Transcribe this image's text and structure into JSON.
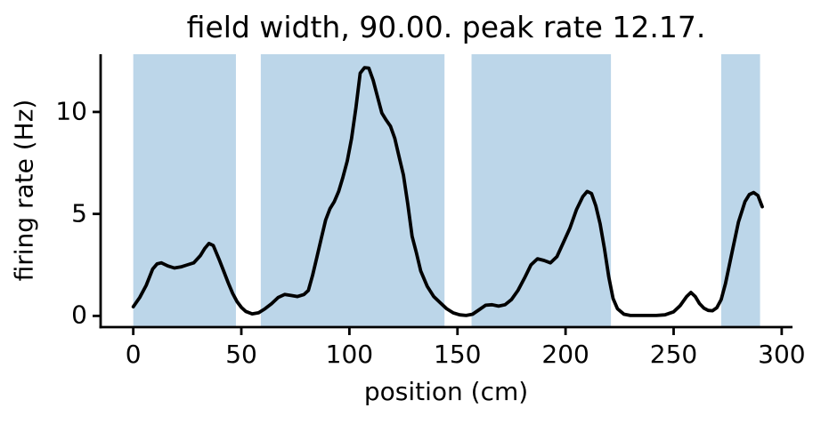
{
  "chart_data": {
    "type": "line",
    "title": "field width, 90.00. peak rate 12.17.",
    "xlabel": "position (cm)",
    "ylabel": "firing rate (Hz)",
    "xlim": [
      -15.1,
      305.0
    ],
    "ylim": [
      -0.55,
      12.83
    ],
    "xticks": [
      0,
      50,
      100,
      150,
      200,
      250,
      300
    ],
    "yticks": [
      0,
      5,
      10
    ],
    "grid": false,
    "legend": "none",
    "line_color": "#000000",
    "axis_color": "#000000",
    "field_fill_color": "#bcd6e9",
    "shaded_fields": [
      [
        0,
        47.5
      ],
      [
        59,
        144
      ],
      [
        156.5,
        221
      ],
      [
        272,
        290
      ]
    ],
    "series": [
      {
        "name": "firing rate (Hz)",
        "x": [
          0,
          3,
          6,
          9,
          11,
          13,
          16,
          19,
          22,
          25,
          28,
          31,
          33,
          35,
          37,
          40,
          42,
          44,
          46,
          48,
          50,
          52,
          55,
          58,
          61,
          64,
          67,
          70,
          73,
          76,
          79,
          81,
          83,
          85,
          87,
          89,
          91,
          93,
          95,
          97,
          99,
          101,
          103,
          105,
          107,
          109,
          111,
          113,
          115,
          117,
          119,
          121,
          123,
          125,
          127,
          129,
          131,
          133,
          136,
          139,
          142,
          145,
          148,
          151,
          154,
          157,
          160,
          163,
          166,
          169,
          172,
          175,
          178,
          181,
          184,
          187,
          190,
          193,
          196,
          199,
          202,
          205,
          208,
          210,
          212,
          214,
          216,
          218,
          220,
          222,
          224,
          227,
          230,
          234,
          238,
          242,
          246,
          250,
          253,
          256,
          258,
          260,
          262,
          264,
          266,
          268,
          270,
          272,
          274,
          277,
          280,
          283,
          285,
          287,
          289,
          291
        ],
        "y": [
          0.45,
          0.9,
          1.5,
          2.3,
          2.55,
          2.6,
          2.45,
          2.35,
          2.4,
          2.5,
          2.6,
          2.95,
          3.3,
          3.55,
          3.45,
          2.7,
          2.15,
          1.6,
          1.1,
          0.7,
          0.42,
          0.22,
          0.1,
          0.15,
          0.35,
          0.6,
          0.9,
          1.05,
          1.0,
          0.95,
          1.05,
          1.25,
          2.0,
          2.9,
          3.8,
          4.7,
          5.25,
          5.6,
          6.1,
          6.8,
          7.6,
          8.7,
          10.2,
          11.9,
          12.17,
          12.15,
          11.55,
          10.75,
          9.95,
          9.6,
          9.3,
          8.7,
          7.8,
          6.9,
          5.5,
          3.9,
          3.1,
          2.2,
          1.45,
          0.95,
          0.65,
          0.35,
          0.15,
          0.05,
          0.02,
          0.08,
          0.3,
          0.52,
          0.55,
          0.48,
          0.55,
          0.8,
          1.25,
          1.85,
          2.5,
          2.8,
          2.72,
          2.6,
          2.9,
          3.6,
          4.3,
          5.2,
          5.85,
          6.1,
          6.0,
          5.4,
          4.5,
          3.3,
          1.9,
          0.85,
          0.35,
          0.08,
          0.02,
          0.02,
          0.02,
          0.02,
          0.05,
          0.2,
          0.5,
          0.95,
          1.15,
          0.95,
          0.6,
          0.38,
          0.27,
          0.25,
          0.4,
          0.8,
          1.6,
          3.1,
          4.6,
          5.6,
          5.95,
          6.05,
          5.9,
          5.35
        ]
      }
    ]
  }
}
